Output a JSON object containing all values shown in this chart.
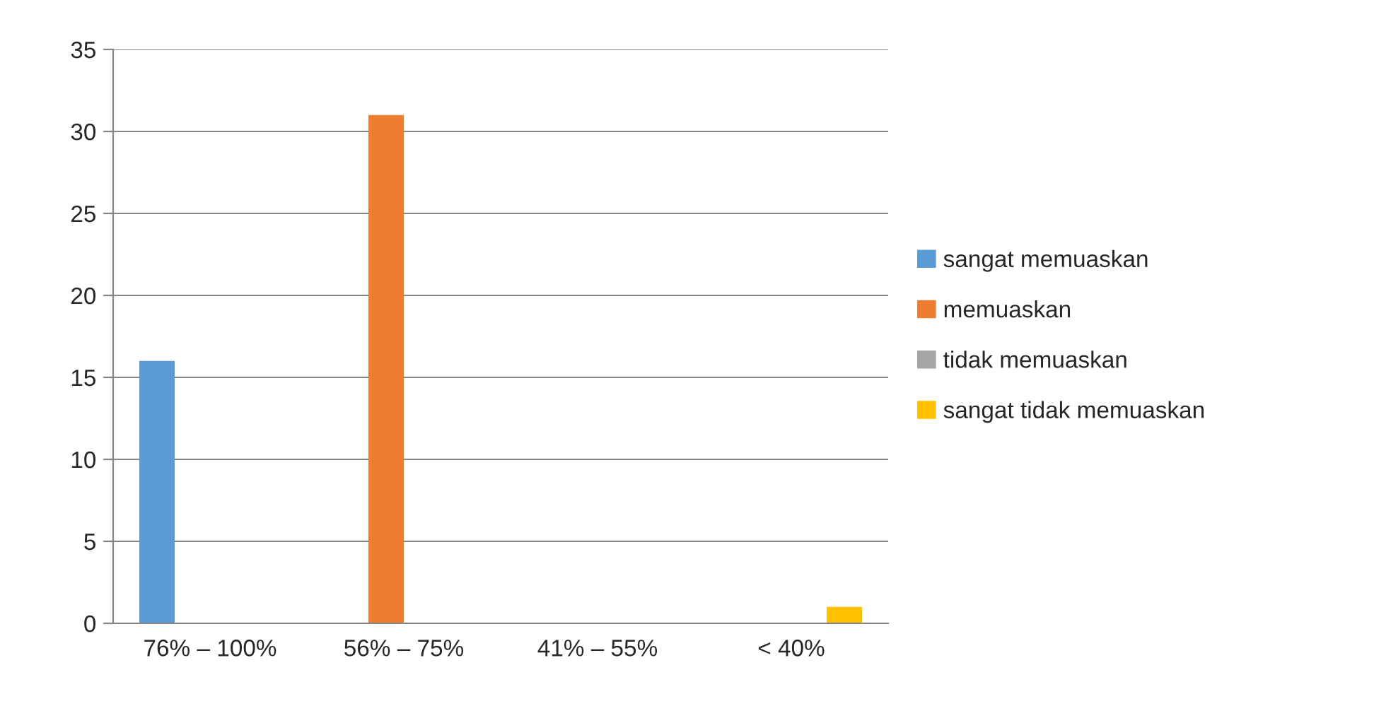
{
  "chart_data": {
    "type": "bar",
    "categories": [
      "76% – 100%",
      "56% – 75%",
      "41% – 55%",
      "< 40%"
    ],
    "series": [
      {
        "name": "sangat memuaskan",
        "color": "#5b9bd5",
        "values": [
          16,
          null,
          null,
          null
        ]
      },
      {
        "name": "memuaskan",
        "color": "#ed7d31",
        "values": [
          null,
          31,
          null,
          null
        ]
      },
      {
        "name": "tidak memuaskan",
        "color": "#a5a5a5",
        "values": [
          null,
          null,
          0,
          null
        ]
      },
      {
        "name": "sangat tidak memuaskan",
        "color": "#ffc000",
        "values": [
          null,
          null,
          null,
          1
        ]
      }
    ],
    "ylim": [
      0,
      35
    ],
    "yticks": [
      0,
      5,
      10,
      15,
      20,
      25,
      30,
      35
    ],
    "grid": "y",
    "legend": "right"
  }
}
